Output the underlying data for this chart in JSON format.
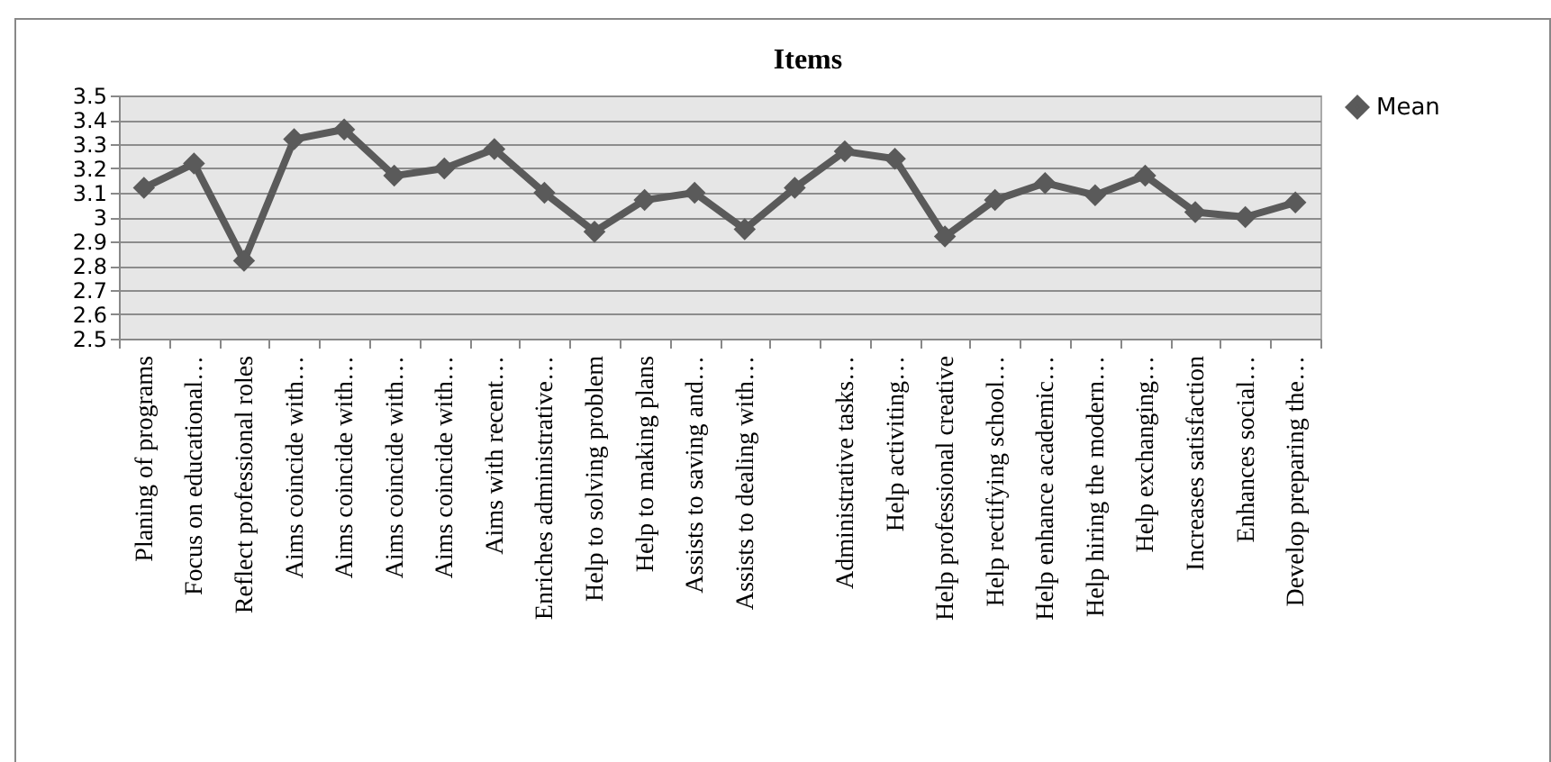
{
  "chart_data": {
    "type": "line",
    "title": "Items",
    "categories": [
      "Planing of programs",
      "Focus on educational…",
      "Reflect professional roles",
      "Aims coincide with…",
      "Aims coincide with…",
      "Aims coincide with…",
      "Aims coincide with…",
      "Aims with recent…",
      "Enriches administrative…",
      "Help to solving problem",
      "Help to making plans",
      "Assists to saving and…",
      "Assists to dealing with…",
      null,
      "Administrative tasks…",
      "Help activiting…",
      "Help professional creative",
      "Help rectifying school…",
      "Help enhance academic…",
      "Help hiring the modern…",
      "Help exchanging…",
      "Increases satisfaction",
      "Enhances social…",
      "Develop preparing the…"
    ],
    "series": [
      {
        "name": "Mean",
        "color": "#5a5a5a",
        "values": [
          3.12,
          3.22,
          2.82,
          3.32,
          3.36,
          3.17,
          3.2,
          3.28,
          3.1,
          2.94,
          3.07,
          3.1,
          2.95,
          3.12,
          3.27,
          3.24,
          2.92,
          3.07,
          3.14,
          3.09,
          3.17,
          3.02,
          3.0,
          3.06
        ]
      }
    ],
    "ylim": [
      2.5,
      3.5
    ],
    "yticks": [
      2.5,
      2.6,
      2.7,
      2.8,
      2.9,
      3,
      3.1,
      3.2,
      3.3,
      3.4,
      3.5
    ],
    "grid": "y",
    "legend": "right",
    "marker": "diamond",
    "line_style": "solid"
  }
}
